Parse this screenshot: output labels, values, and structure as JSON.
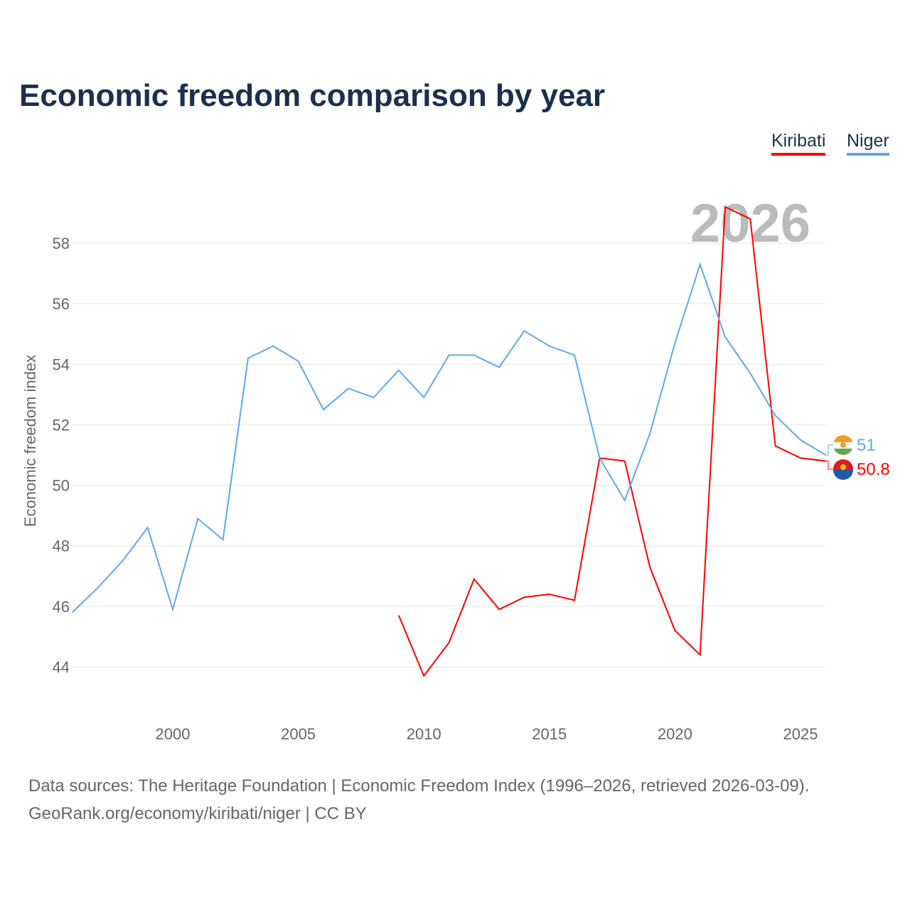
{
  "title": "Economic freedom comparison by year",
  "footer": {
    "line1": "Data sources: The Heritage Foundation | Economic Freedom Index (1996–2026, retrieved 2026-03-09).",
    "line2": "GeoRank.org/economy/kiribati/niger | CC BY"
  },
  "chart_data": {
    "type": "line",
    "title": "Economic freedom comparison by year",
    "ylabel": "Economic freedom index",
    "xlabel": "",
    "year_label": "2026",
    "xlim": [
      1996,
      2026
    ],
    "ylim": [
      42.5,
      59.5
    ],
    "yticks": [
      44,
      46,
      48,
      50,
      52,
      54,
      56,
      58
    ],
    "xticks": [
      2000,
      2005,
      2010,
      2015,
      2020,
      2025
    ],
    "grid": true,
    "legend": "top-right",
    "series": [
      {
        "name": "Kiribati",
        "color": "#ff0000",
        "end_label": "50.8",
        "start": 2009,
        "values": [
          45.7,
          43.7,
          44.8,
          46.9,
          45.9,
          46.3,
          46.4,
          46.2,
          50.9,
          50.8,
          47.3,
          45.2,
          44.4,
          59.2,
          58.8,
          51.3,
          50.9,
          50.8
        ]
      },
      {
        "name": "Niger",
        "color": "#5ea8ef",
        "end_label": "51",
        "start": 1996,
        "values": [
          45.8,
          46.6,
          47.5,
          48.6,
          45.9,
          48.9,
          48.2,
          54.2,
          54.6,
          54.1,
          52.5,
          53.2,
          52.9,
          53.8,
          52.9,
          54.3,
          54.3,
          53.9,
          55.1,
          54.6,
          54.3,
          50.9,
          49.5,
          51.7,
          54.7,
          57.3,
          54.9,
          53.7,
          52.3,
          51.5,
          51.0
        ]
      }
    ]
  }
}
